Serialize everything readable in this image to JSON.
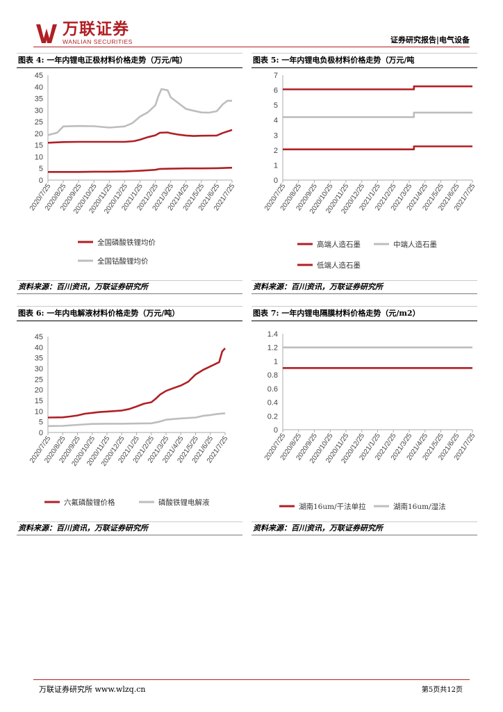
{
  "header": {
    "logo_cn": "万联证券",
    "logo_en": "WANLIAN SECURITIES",
    "report_tag": "证券研究报告|电气设备"
  },
  "colors": {
    "red": "#b01f24",
    "gray": "#bdbdbd",
    "accent": "#b01f24"
  },
  "footer": {
    "left": "万联证券研究所 www.wlzq.cn",
    "right": "第5页共12页"
  },
  "figures": [
    {
      "title": "图表 4:  一年内锂电正极材料价格走势（万元/吨）",
      "source": "资料来源：百川资讯，万联证券研究所",
      "chart_data": {
        "type": "line",
        "categories": [
          "2020/7/25",
          "2020/8/25",
          "2020/9/25",
          "2020/10/25",
          "2020/11/25",
          "2020/12/25",
          "2021/1/25",
          "2021/2/25",
          "2021/3/25",
          "2021/4/25",
          "2021/5/25",
          "2021/6/25",
          "2021/7/25"
        ],
        "ylim": [
          0,
          45
        ],
        "yticks": [
          0,
          5,
          10,
          15,
          20,
          25,
          30,
          35,
          40,
          45
        ],
        "series": [
          {
            "name": "全国磷酸铁锂均价",
            "color": "#b01f24",
            "points": [
              [
                0,
                3.5
              ],
              [
                1,
                3.5
              ],
              [
                2,
                3.5
              ],
              [
                3,
                3.6
              ],
              [
                4,
                3.6
              ],
              [
                5,
                3.7
              ],
              [
                6,
                4.0
              ],
              [
                6.5,
                4.2
              ],
              [
                7,
                4.4
              ],
              [
                7.3,
                4.8
              ],
              [
                8,
                4.9
              ],
              [
                9,
                5.0
              ],
              [
                10,
                5.0
              ],
              [
                11,
                5.1
              ],
              [
                12,
                5.3
              ]
            ]
          },
          {
            "name": "",
            "color": "#b01f24",
            "points": [
              [
                0,
                16.0
              ],
              [
                1,
                16.3
              ],
              [
                2,
                16.4
              ],
              [
                3,
                16.4
              ],
              [
                4,
                16.4
              ],
              [
                5,
                16.4
              ],
              [
                5.6,
                16.7
              ],
              [
                6,
                17.3
              ],
              [
                6.5,
                18.4
              ],
              [
                7,
                19.2
              ],
              [
                7.3,
                20.3
              ],
              [
                7.8,
                20.4
              ],
              [
                8,
                20.1
              ],
              [
                8.5,
                19.5
              ],
              [
                9,
                19.1
              ],
              [
                9.5,
                18.9
              ],
              [
                10,
                19.0
              ],
              [
                11,
                19.1
              ],
              [
                11.4,
                20.2
              ],
              [
                12,
                21.5
              ]
            ]
          },
          {
            "name": "全国钴酸锂均价",
            "color": "#bdbdbd",
            "points": [
              [
                0,
                19.3
              ],
              [
                0.6,
                20.3
              ],
              [
                1,
                23.0
              ],
              [
                2,
                23.2
              ],
              [
                3,
                23.1
              ],
              [
                4,
                22.5
              ],
              [
                5,
                23.0
              ],
              [
                5.5,
                24.4
              ],
              [
                6,
                27.2
              ],
              [
                6.5,
                29.0
              ],
              [
                7,
                32.0
              ],
              [
                7.2,
                36.0
              ],
              [
                7.4,
                39.0
              ],
              [
                7.8,
                38.5
              ],
              [
                8,
                35.5
              ],
              [
                8.4,
                33.5
              ],
              [
                9,
                30.5
              ],
              [
                9.5,
                29.7
              ],
              [
                10,
                29.0
              ],
              [
                10.5,
                28.9
              ],
              [
                11,
                29.5
              ],
              [
                11.4,
                32.5
              ],
              [
                11.7,
                34.0
              ],
              [
                12,
                34.0
              ]
            ]
          }
        ]
      },
      "legend": [
        {
          "label": "全国磷酸铁锂均价",
          "color": "#b01f24"
        },
        {
          "label": "全国钴酸锂均价",
          "color": "#bdbdbd"
        }
      ]
    },
    {
      "title": "图表 5:  一年内锂电负极材料价格走势（万元/吨",
      "source": "资料来源：百川资讯，万联证券研究所",
      "chart_data": {
        "type": "line",
        "categories": [
          "2020/7/25",
          "2020/8/25",
          "2020/9/25",
          "2020/10/25",
          "2020/11/25",
          "2020/12/25",
          "2021/1/25",
          "2021/2/25",
          "2021/3/25",
          "2021/4/25",
          "2021/5/25",
          "2021/6/25",
          "2021/7/25"
        ],
        "ylim": [
          0,
          7
        ],
        "yticks": [
          0,
          1,
          2,
          3,
          4,
          5,
          6,
          7
        ],
        "series": [
          {
            "name": "高端人造石墨",
            "color": "#b01f24",
            "points": [
              [
                0,
                6.05
              ],
              [
                8.3,
                6.05
              ],
              [
                8.3,
                6.25
              ],
              [
                12,
                6.25
              ]
            ]
          },
          {
            "name": "中端人造石墨",
            "color": "#bdbdbd",
            "points": [
              [
                0,
                4.2
              ],
              [
                8.3,
                4.2
              ],
              [
                8.3,
                4.5
              ],
              [
                12,
                4.5
              ]
            ]
          },
          {
            "name": "低端人造石墨",
            "color": "#b01f24",
            "points": [
              [
                0,
                2.05
              ],
              [
                8.3,
                2.05
              ],
              [
                8.3,
                2.25
              ],
              [
                12,
                2.25
              ]
            ]
          }
        ]
      },
      "legend": [
        {
          "label": "高端人造石墨",
          "color": "#b01f24"
        },
        {
          "label": "中端人造石墨",
          "color": "#bdbdbd"
        },
        {
          "label": "低端人造石墨",
          "color": "#b01f24"
        }
      ]
    },
    {
      "title": "图表 6:  一年内电解液材料价格走势（万元/吨）",
      "source": "资料来源：百川资讯，万联证券研究所",
      "chart_data": {
        "type": "line",
        "categories": [
          "2020/7/25",
          "2020/8/25",
          "2020/9/25",
          "2020/10/25",
          "2020/11/25",
          "2020/12/25",
          "2021/1/25",
          "2021/2/25",
          "2021/3/25",
          "2021/4/25",
          "2021/5/25",
          "2021/6/25",
          "2021/7/25"
        ],
        "ylim": [
          0,
          45
        ],
        "yticks": [
          0,
          5,
          10,
          15,
          20,
          25,
          30,
          35,
          40,
          45
        ],
        "series": [
          {
            "name": "六氟磷酸锂价格",
            "color": "#b01f24",
            "points": [
              [
                0,
                7.0
              ],
              [
                1,
                7.1
              ],
              [
                1.5,
                7.5
              ],
              [
                2,
                8.0
              ],
              [
                2.5,
                8.8
              ],
              [
                3,
                9.2
              ],
              [
                3.5,
                9.6
              ],
              [
                4,
                9.8
              ],
              [
                5,
                10.3
              ],
              [
                5.5,
                11.0
              ],
              [
                6,
                12.2
              ],
              [
                6.5,
                13.5
              ],
              [
                7,
                14.2
              ],
              [
                7.3,
                15.8
              ],
              [
                7.6,
                17.8
              ],
              [
                8,
                19.5
              ],
              [
                8.5,
                20.8
              ],
              [
                9,
                22.0
              ],
              [
                9.5,
                23.8
              ],
              [
                10,
                27.2
              ],
              [
                10.5,
                29.3
              ],
              [
                11,
                31.0
              ],
              [
                11.3,
                32.0
              ],
              [
                11.6,
                33.0
              ],
              [
                11.8,
                38.0
              ],
              [
                12,
                39.5
              ]
            ]
          },
          {
            "name": "磷酸铁锂电解液",
            "color": "#bdbdbd",
            "points": [
              [
                0,
                3.0
              ],
              [
                1,
                3.1
              ],
              [
                2,
                3.6
              ],
              [
                3,
                4.0
              ],
              [
                4,
                4.1
              ],
              [
                5,
                4.1
              ],
              [
                6,
                4.2
              ],
              [
                7,
                4.3
              ],
              [
                7.5,
                5.0
              ],
              [
                8,
                6.0
              ],
              [
                8.5,
                6.3
              ],
              [
                9,
                6.6
              ],
              [
                10,
                7.0
              ],
              [
                10.5,
                7.8
              ],
              [
                11,
                8.2
              ],
              [
                11.5,
                8.7
              ],
              [
                12,
                9.0
              ]
            ]
          }
        ]
      },
      "legend": [
        {
          "label": "六氟磷酸锂价格",
          "color": "#b01f24"
        },
        {
          "label": "磷酸铁锂电解液",
          "color": "#bdbdbd"
        }
      ]
    },
    {
      "title": "图表 7:  一年内锂电隔膜材料价格走势（元/m2）",
      "source": "资料来源：百川资讯，万联证券研究所",
      "chart_data": {
        "type": "line",
        "categories": [
          "2020/7/25",
          "2020/8/25",
          "2020/9/25",
          "2020/10/25",
          "2020/11/25",
          "2020/12/25",
          "2021/1/25",
          "2021/2/25",
          "2021/3/25",
          "2021/4/25",
          "2021/5/25",
          "2021/6/25",
          "2021/7/25"
        ],
        "ylim": [
          0,
          1.4
        ],
        "yticks": [
          0,
          0.2,
          0.4,
          0.6,
          0.8,
          1,
          1.2,
          1.4
        ],
        "series": [
          {
            "name": "湖南16um/干法单拉",
            "color": "#b01f24",
            "points": [
              [
                0,
                0.9
              ],
              [
                12,
                0.9
              ]
            ]
          },
          {
            "name": "湖南16um/湿法",
            "color": "#bdbdbd",
            "points": [
              [
                0,
                1.2
              ],
              [
                12,
                1.2
              ]
            ]
          }
        ]
      },
      "legend": [
        {
          "label": "湖南16um/干法单拉",
          "color": "#b01f24"
        },
        {
          "label": "湖南16um/湿法",
          "color": "#bdbdbd"
        }
      ]
    }
  ]
}
